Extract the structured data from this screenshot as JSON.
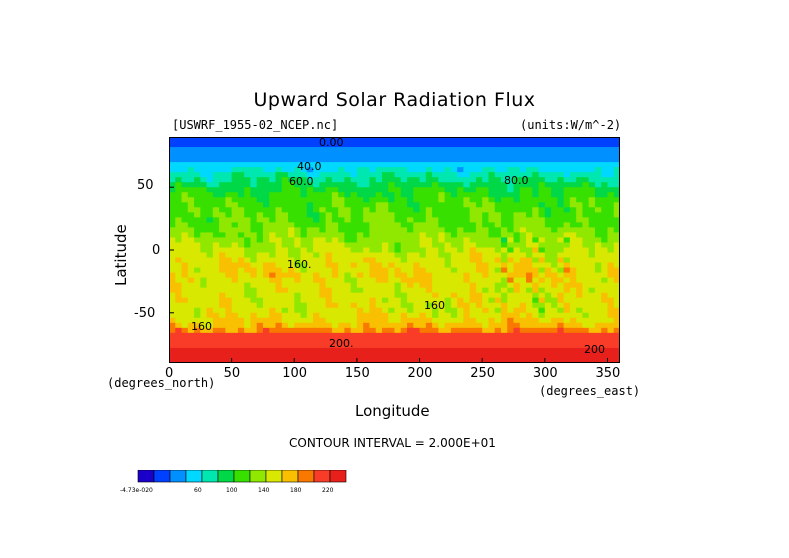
{
  "chart_data": {
    "type": "heatmap",
    "title": "Upward Solar Radiation Flux",
    "file_label": "[USWRF_1955-02_NCEP.nc]",
    "units_label": "(units:W/m^-2)",
    "xlabel": "Longitude",
    "ylabel": "Latitude",
    "x_unit_label": "(degrees_east)",
    "y_unit_label": "(degrees_north)",
    "xlim": [
      0,
      360
    ],
    "ylim": [
      -90,
      90
    ],
    "x_ticks": [
      "0",
      "50",
      "100",
      "150",
      "200",
      "250",
      "300",
      "350"
    ],
    "y_ticks": [
      "50",
      "0",
      "-50"
    ],
    "contour_interval_text": "CONTOUR INTERVAL = 2.000E+01",
    "contour_labels": [
      "0.00",
      "40.0",
      "60.0",
      "80.0",
      "160.",
      "160",
      "160",
      "200.",
      "200"
    ],
    "colorbar": {
      "ticks": [
        "-4.73e-020",
        "60",
        "100",
        "140",
        "180",
        "220"
      ],
      "colors": [
        "#1a00c8",
        "#0040ff",
        "#0090ff",
        "#00d8ff",
        "#00e8b0",
        "#00d848",
        "#38e000",
        "#90e800",
        "#d8e800",
        "#f8c000",
        "#f87800",
        "#f83c28",
        "#e8201c"
      ]
    },
    "zonal_profile": {
      "latitudes": [
        90,
        80,
        70,
        60,
        50,
        40,
        30,
        20,
        10,
        0,
        -10,
        -20,
        -30,
        -40,
        -50,
        -60,
        -70,
        -80,
        -90
      ],
      "values": [
        0,
        20,
        40,
        70,
        95,
        110,
        115,
        120,
        130,
        140,
        155,
        160,
        150,
        150,
        150,
        170,
        210,
        220,
        220
      ]
    }
  }
}
